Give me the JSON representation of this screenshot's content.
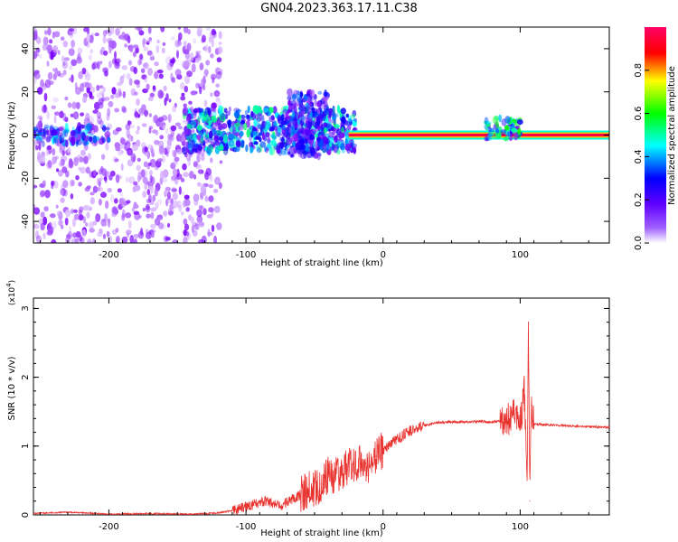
{
  "title": "GN04.2023.363.17.11.C38",
  "chart_data": [
    {
      "type": "heatmap",
      "xlabel": "Height of straight line (km)",
      "ylabel": "Frequency (Hz)",
      "xlim": [
        -255,
        165
      ],
      "ylim": [
        -50,
        50
      ],
      "xticks": [
        -200,
        -100,
        0,
        100
      ],
      "xtick_labels": [
        "-200",
        "-100",
        "0",
        "100"
      ],
      "yticks": [
        -40,
        -20,
        0,
        20,
        40
      ],
      "ytick_labels": [
        "-40",
        "-20",
        "0",
        "20",
        "40"
      ],
      "colorbar": {
        "label": "Normalized spectral amplitude",
        "range": [
          0,
          1
        ],
        "ticks": [
          0.0,
          0.2,
          0.4,
          0.6,
          0.8
        ],
        "tick_labels": [
          "0.0",
          "0.2",
          "0.4",
          "0.6",
          "0.8"
        ],
        "colors": [
          "#ffffff",
          "#7a00ff",
          "#0000ff",
          "#00ffff",
          "#00ff00",
          "#ffff00",
          "#ff0000",
          "#ff0066"
        ]
      },
      "features": [
        {
          "x_range": [
            -255,
            -118
          ],
          "y_range": [
            -50,
            50
          ],
          "amplitude": 0.1
        },
        {
          "x_range": [
            -255,
            -200
          ],
          "y_range": [
            -4,
            4
          ],
          "amplitude": 0.3
        },
        {
          "x_range": [
            -145,
            -20
          ],
          "y_range": [
            -8,
            12
          ],
          "amplitude": 0.35
        },
        {
          "x_range": [
            -70,
            -40
          ],
          "y_range": [
            -10,
            20
          ],
          "amplitude": 0.25
        },
        {
          "x_range": [
            -25,
            165
          ],
          "y_range": [
            -1,
            1
          ],
          "amplitude": 0.95
        },
        {
          "x_range": [
            75,
            100
          ],
          "y_range": [
            -2,
            8
          ],
          "amplitude": 0.4
        }
      ]
    },
    {
      "type": "line",
      "xlabel": "Height of straight line (km)",
      "ylabel": "SNR (10 * v/v)",
      "y_multiplier": "(x10",
      "y_multiplier_exp": "4",
      "y_multiplier_close": ")",
      "xlim": [
        -255,
        165
      ],
      "ylim": [
        0,
        3.15
      ],
      "xticks": [
        -200,
        -100,
        0,
        100
      ],
      "xtick_labels": [
        "-200",
        "-100",
        "0",
        "100"
      ],
      "yticks": [
        0,
        1,
        2,
        3
      ],
      "ytick_labels": [
        "0",
        "1",
        "2",
        "3"
      ],
      "series": [
        {
          "color": "#e8332f",
          "x": [
            -255,
            -230,
            -200,
            -170,
            -140,
            -120,
            -105,
            -95,
            -85,
            -75,
            -65,
            -55,
            -45,
            -40,
            -35,
            -30,
            -25,
            -20,
            -15,
            -10,
            -5,
            0,
            10,
            20,
            30,
            40,
            50,
            60,
            70,
            80,
            90,
            95,
            100,
            103,
            105,
            106,
            107,
            108,
            110,
            120,
            140,
            165
          ],
          "y": [
            0.02,
            0.04,
            0.01,
            0.02,
            0.01,
            0.03,
            0.08,
            0.15,
            0.2,
            0.12,
            0.25,
            0.35,
            0.45,
            0.6,
            0.55,
            0.65,
            0.7,
            0.75,
            0.8,
            0.7,
            0.85,
            0.95,
            1.1,
            1.22,
            1.3,
            1.34,
            1.35,
            1.35,
            1.36,
            1.35,
            1.37,
            1.45,
            1.3,
            1.8,
            0.5,
            2.8,
            0.2,
            1.6,
            1.32,
            1.31,
            1.29,
            1.27
          ]
        }
      ]
    }
  ]
}
